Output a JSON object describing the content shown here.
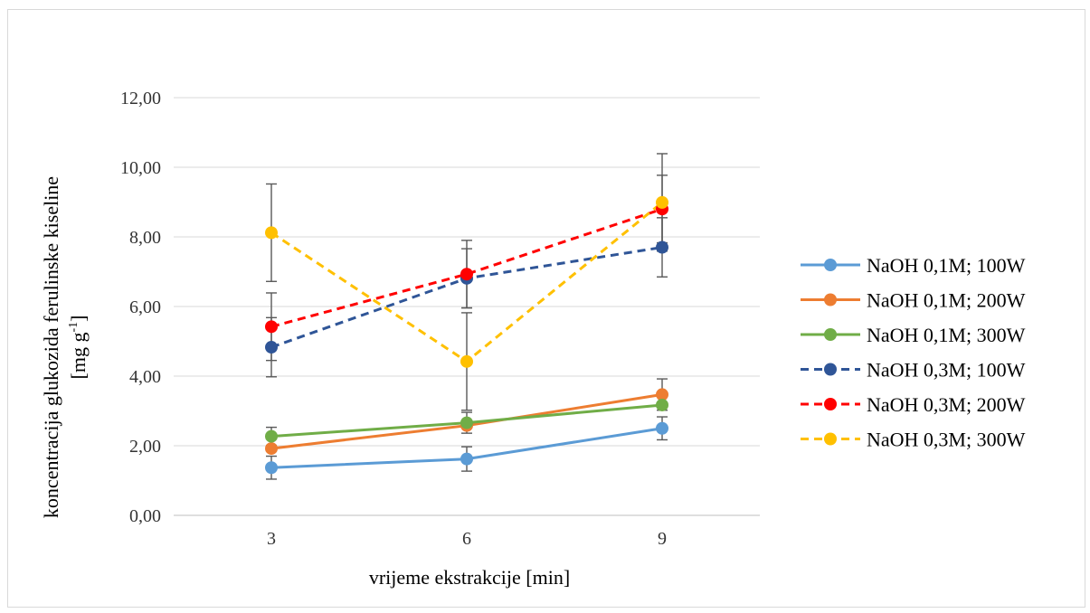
{
  "chart_data": {
    "type": "line",
    "categories": [
      "3",
      "6",
      "9"
    ],
    "ylim": [
      0,
      12
    ],
    "yticks": [
      "0,00",
      "2,00",
      "4,00",
      "6,00",
      "8,00",
      "10,00",
      "12,00"
    ],
    "grid": true,
    "legend_position": "right",
    "xlabel": "vrijeme ekstrakcije [min]",
    "ylabel_line1": "koncentracija glukozida ferulinske kiseline",
    "ylabel_line2_prefix": "[mg g",
    "ylabel_line2_sup": "-1",
    "ylabel_line2_suffix": "]",
    "series": [
      {
        "name": "NaOH 0,1M; 100W",
        "values": [
          1.37,
          1.62,
          2.5
        ],
        "errors": [
          0.33,
          0.35,
          0.33
        ],
        "color": "#5b9bd5",
        "dashed": false
      },
      {
        "name": "NaOH 0,1M; 200W",
        "values": [
          1.92,
          2.58,
          3.47
        ],
        "errors": [
          0.0,
          0.0,
          0.45
        ],
        "color": "#ed7d31",
        "dashed": false
      },
      {
        "name": "NaOH 0,1M; 300W",
        "values": [
          2.27,
          2.66,
          3.17
        ],
        "errors": [
          0.26,
          0.3,
          0.0
        ],
        "color": "#70ad47",
        "dashed": false
      },
      {
        "name": "NaOH 0,3M; 100W",
        "values": [
          4.83,
          6.81,
          7.7
        ],
        "errors": [
          0.85,
          0.85,
          0.85
        ],
        "color": "#2f5597",
        "dashed": true
      },
      {
        "name": "NaOH 0,3M; 200W",
        "values": [
          5.42,
          6.93,
          8.8
        ],
        "errors": [
          0.97,
          0.97,
          0.97
        ],
        "color": "#ff0000",
        "dashed": true
      },
      {
        "name": "NaOH 0,3M; 300W",
        "values": [
          8.12,
          4.42,
          8.99
        ],
        "errors": [
          1.4,
          1.4,
          1.4
        ],
        "color": "#ffc000",
        "dashed": true
      }
    ]
  }
}
